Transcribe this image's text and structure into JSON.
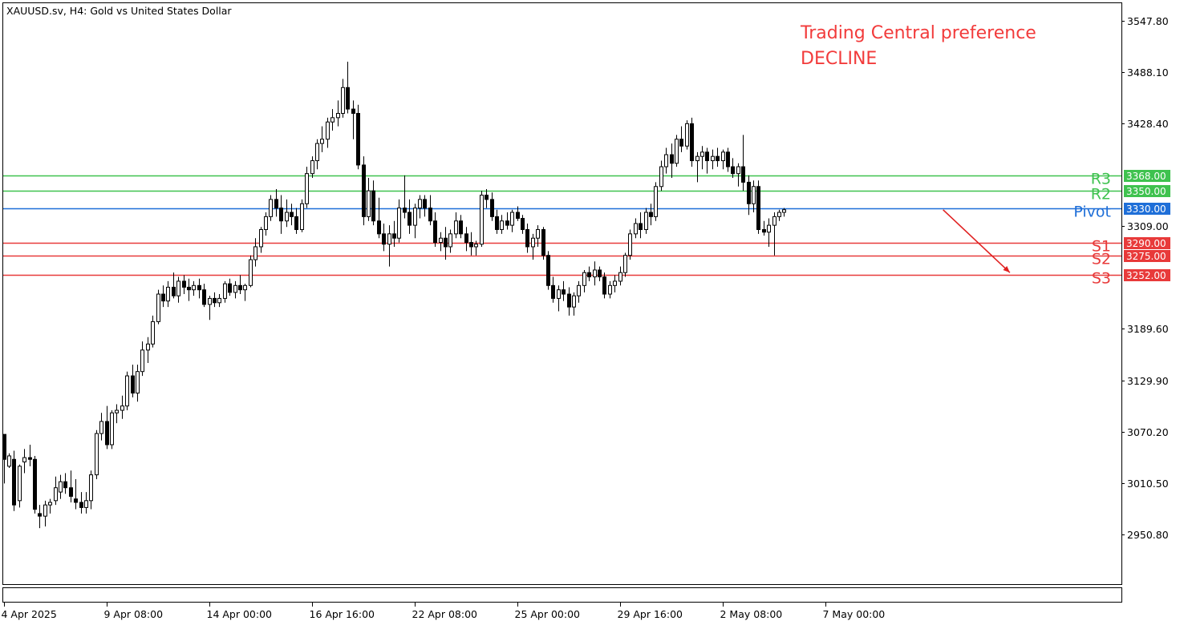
{
  "chart_data": {
    "type": "candlestick",
    "symbol_title": "XAUUSD.sv, H4:  Gold vs United States Dollar",
    "preference": {
      "title": "Trading Central preference",
      "direction": "DECLINE",
      "color": "#f23b3b"
    },
    "y_axis": {
      "range": [
        2893.0,
        3568.0
      ],
      "ticks": [
        "3547.80",
        "3488.10",
        "3428.40",
        "3309.00",
        "3189.60",
        "3129.90",
        "3070.20",
        "3010.50",
        "2950.80"
      ]
    },
    "x_axis": {
      "tick_labels": [
        {
          "label": "4 Apr 2025",
          "bar": 0
        },
        {
          "label": "9 Apr 08:00",
          "bar": 20
        },
        {
          "label": "14 Apr 00:00",
          "bar": 40
        },
        {
          "label": "16 Apr 16:00",
          "bar": 60
        },
        {
          "label": "22 Apr 08:00",
          "bar": 80
        },
        {
          "label": "25 Apr 00:00",
          "bar": 100
        },
        {
          "label": "29 Apr 16:00",
          "bar": 120
        },
        {
          "label": "2 May 08:00",
          "bar": 140
        },
        {
          "label": "7 May 00:00",
          "bar": 160
        }
      ]
    },
    "levels": [
      {
        "name": "R3",
        "value": 3368.0,
        "label": "3368.00",
        "color": "#3fc24f"
      },
      {
        "name": "R2",
        "value": 3350.0,
        "label": "3350.00",
        "color": "#3fc24f"
      },
      {
        "name": "Pivot",
        "value": 3330.0,
        "label": "3330.00",
        "color": "#1f6fd8"
      },
      {
        "name": "S1",
        "value": 3290.0,
        "label": "3290.00",
        "color": "#e83a3a"
      },
      {
        "name": "S2",
        "value": 3275.0,
        "label": "3275.00",
        "color": "#e83a3a"
      },
      {
        "name": "S3",
        "value": 3252.0,
        "label": "3252.00",
        "color": "#e83a3a"
      }
    ],
    "forecast_arrow": {
      "from_bar": 183,
      "from_value": 3328.0,
      "to_bar": 196,
      "to_value": 3255.0,
      "color": "#e02020"
    },
    "candles": [
      [
        3067,
        3067,
        3010,
        3038
      ],
      [
        3030,
        3045,
        3028,
        3042
      ],
      [
        3038,
        3048,
        2978,
        2985
      ],
      [
        2990,
        3032,
        2982,
        3030
      ],
      [
        3035,
        3050,
        3022,
        3040
      ],
      [
        3040,
        3055,
        3030,
        3038
      ],
      [
        3038,
        3042,
        2975,
        2980
      ],
      [
        2975,
        2985,
        2958,
        2972
      ],
      [
        2972,
        2990,
        2960,
        2985
      ],
      [
        2985,
        2992,
        2975,
        2988
      ],
      [
        2990,
        3018,
        2985,
        3005
      ],
      [
        3000,
        3020,
        2992,
        3012
      ],
      [
        3012,
        3022,
        2998,
        3005
      ],
      [
        3005,
        3025,
        2988,
        2995
      ],
      [
        2992,
        3015,
        2980,
        2988
      ],
      [
        2988,
        3000,
        2975,
        2982
      ],
      [
        2982,
        3000,
        2975,
        2990
      ],
      [
        2990,
        3025,
        2980,
        3020
      ],
      [
        3020,
        3072,
        3015,
        3068
      ],
      [
        3068,
        3092,
        3060,
        3082
      ],
      [
        3082,
        3100,
        3050,
        3055
      ],
      [
        3055,
        3095,
        3050,
        3092
      ],
      [
        3092,
        3102,
        3080,
        3095
      ],
      [
        3095,
        3112,
        3085,
        3100
      ],
      [
        3100,
        3140,
        3095,
        3135
      ],
      [
        3135,
        3148,
        3110,
        3115
      ],
      [
        3115,
        3148,
        3105,
        3140
      ],
      [
        3140,
        3175,
        3135,
        3165
      ],
      [
        3165,
        3180,
        3150,
        3172
      ],
      [
        3172,
        3205,
        3168,
        3198
      ],
      [
        3198,
        3235,
        3195,
        3230
      ],
      [
        3230,
        3240,
        3215,
        3222
      ],
      [
        3222,
        3245,
        3215,
        3238
      ],
      [
        3238,
        3255,
        3225,
        3228
      ],
      [
        3228,
        3250,
        3220,
        3245
      ],
      [
        3245,
        3252,
        3230,
        3238
      ],
      [
        3238,
        3248,
        3222,
        3235
      ],
      [
        3235,
        3245,
        3228,
        3240
      ],
      [
        3240,
        3248,
        3225,
        3235
      ],
      [
        3235,
        3242,
        3215,
        3218
      ],
      [
        3218,
        3228,
        3200,
        3225
      ],
      [
        3225,
        3232,
        3215,
        3220
      ],
      [
        3220,
        3230,
        3215,
        3225
      ],
      [
        3225,
        3245,
        3220,
        3242
      ],
      [
        3242,
        3248,
        3228,
        3232
      ],
      [
        3232,
        3245,
        3225,
        3240
      ],
      [
        3240,
        3252,
        3230,
        3235
      ],
      [
        3235,
        3242,
        3222,
        3240
      ],
      [
        3240,
        3275,
        3238,
        3270
      ],
      [
        3270,
        3295,
        3262,
        3285
      ],
      [
        3285,
        3308,
        3278,
        3305
      ],
      [
        3305,
        3325,
        3298,
        3320
      ],
      [
        3320,
        3345,
        3315,
        3340
      ],
      [
        3340,
        3352,
        3320,
        3330
      ],
      [
        3330,
        3345,
        3300,
        3315
      ],
      [
        3315,
        3340,
        3308,
        3325
      ],
      [
        3325,
        3335,
        3310,
        3320
      ],
      [
        3320,
        3330,
        3300,
        3305
      ],
      [
        3305,
        3340,
        3302,
        3335
      ],
      [
        3335,
        3378,
        3330,
        3370
      ],
      [
        3370,
        3390,
        3365,
        3385
      ],
      [
        3385,
        3410,
        3375,
        3405
      ],
      [
        3405,
        3425,
        3395,
        3410
      ],
      [
        3410,
        3435,
        3400,
        3430
      ],
      [
        3430,
        3445,
        3420,
        3435
      ],
      [
        3435,
        3455,
        3425,
        3440
      ],
      [
        3440,
        3480,
        3435,
        3470
      ],
      [
        3470,
        3500,
        3440,
        3445
      ],
      [
        3445,
        3455,
        3410,
        3440
      ],
      [
        3440,
        3450,
        3375,
        3380
      ],
      [
        3380,
        3390,
        3310,
        3320
      ],
      [
        3320,
        3365,
        3315,
        3350
      ],
      [
        3350,
        3362,
        3310,
        3315
      ],
      [
        3315,
        3342,
        3295,
        3300
      ],
      [
        3300,
        3312,
        3280,
        3288
      ],
      [
        3288,
        3310,
        3262,
        3300
      ],
      [
        3300,
        3315,
        3285,
        3295
      ],
      [
        3295,
        3340,
        3290,
        3330
      ],
      [
        3330,
        3368,
        3318,
        3325
      ],
      [
        3325,
        3340,
        3300,
        3310
      ],
      [
        3310,
        3335,
        3295,
        3330
      ],
      [
        3330,
        3345,
        3318,
        3340
      ],
      [
        3340,
        3345,
        3320,
        3330
      ],
      [
        3330,
        3345,
        3310,
        3315
      ],
      [
        3315,
        3325,
        3285,
        3290
      ],
      [
        3290,
        3302,
        3280,
        3295
      ],
      [
        3295,
        3308,
        3270,
        3285
      ],
      [
        3285,
        3305,
        3278,
        3300
      ],
      [
        3300,
        3325,
        3295,
        3315
      ],
      [
        3315,
        3322,
        3295,
        3300
      ],
      [
        3300,
        3308,
        3280,
        3290
      ],
      [
        3290,
        3302,
        3275,
        3285
      ],
      [
        3285,
        3292,
        3275,
        3288
      ],
      [
        3288,
        3350,
        3285,
        3345
      ],
      [
        3345,
        3352,
        3330,
        3340
      ],
      [
        3340,
        3348,
        3315,
        3320
      ],
      [
        3320,
        3328,
        3300,
        3305
      ],
      [
        3305,
        3322,
        3300,
        3315
      ],
      [
        3315,
        3325,
        3305,
        3310
      ],
      [
        3310,
        3328,
        3302,
        3325
      ],
      [
        3325,
        3332,
        3315,
        3318
      ],
      [
        3318,
        3322,
        3300,
        3305
      ],
      [
        3305,
        3312,
        3278,
        3285
      ],
      [
        3285,
        3300,
        3270,
        3295
      ],
      [
        3295,
        3310,
        3285,
        3305
      ],
      [
        3305,
        3308,
        3270,
        3275
      ],
      [
        3275,
        3280,
        3235,
        3240
      ],
      [
        3240,
        3250,
        3220,
        3225
      ],
      [
        3225,
        3240,
        3210,
        3235
      ],
      [
        3235,
        3245,
        3222,
        3230
      ],
      [
        3230,
        3238,
        3205,
        3215
      ],
      [
        3215,
        3232,
        3205,
        3228
      ],
      [
        3228,
        3245,
        3220,
        3240
      ],
      [
        3240,
        3258,
        3232,
        3255
      ],
      [
        3255,
        3262,
        3245,
        3250
      ],
      [
        3250,
        3268,
        3240,
        3258
      ],
      [
        3258,
        3262,
        3245,
        3250
      ],
      [
        3250,
        3255,
        3225,
        3230
      ],
      [
        3230,
        3245,
        3225,
        3240
      ],
      [
        3240,
        3252,
        3232,
        3245
      ],
      [
        3245,
        3262,
        3240,
        3255
      ],
      [
        3255,
        3278,
        3250,
        3275
      ],
      [
        3275,
        3305,
        3270,
        3300
      ],
      [
        3300,
        3318,
        3295,
        3312
      ],
      [
        3312,
        3325,
        3295,
        3305
      ],
      [
        3305,
        3330,
        3300,
        3325
      ],
      [
        3325,
        3335,
        3310,
        3320
      ],
      [
        3320,
        3360,
        3315,
        3355
      ],
      [
        3355,
        3385,
        3350,
        3378
      ],
      [
        3378,
        3400,
        3370,
        3392
      ],
      [
        3392,
        3405,
        3365,
        3382
      ],
      [
        3382,
        3415,
        3378,
        3410
      ],
      [
        3410,
        3425,
        3395,
        3402
      ],
      [
        3402,
        3432,
        3398,
        3428
      ],
      [
        3428,
        3435,
        3378,
        3385
      ],
      [
        3385,
        3395,
        3360,
        3390
      ],
      [
        3390,
        3402,
        3375,
        3395
      ],
      [
        3395,
        3400,
        3370,
        3385
      ],
      [
        3385,
        3398,
        3375,
        3390
      ],
      [
        3390,
        3400,
        3378,
        3385
      ],
      [
        3385,
        3398,
        3375,
        3395
      ],
      [
        3395,
        3400,
        3372,
        3378
      ],
      [
        3378,
        3388,
        3365,
        3370
      ],
      [
        3370,
        3382,
        3355,
        3378
      ],
      [
        3378,
        3415,
        3350,
        3360
      ],
      [
        3360,
        3368,
        3322,
        3335
      ],
      [
        3335,
        3362,
        3325,
        3355
      ],
      [
        3355,
        3362,
        3300,
        3305
      ],
      [
        3305,
        3315,
        3298,
        3302
      ],
      [
        3302,
        3318,
        3285,
        3310
      ],
      [
        3310,
        3325,
        3275,
        3320
      ],
      [
        3320,
        3328,
        3315,
        3325
      ],
      [
        3325,
        3330,
        3320,
        3328
      ]
    ]
  }
}
